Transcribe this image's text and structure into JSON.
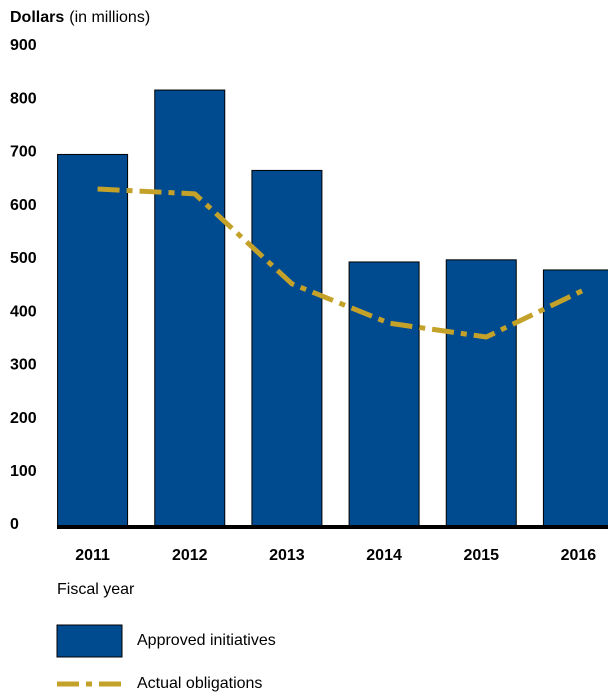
{
  "chart_data": {
    "type": "bar",
    "ylabel": "Dollars",
    "yunit": "(in millions)",
    "xlabel": "Fiscal year",
    "categories": [
      "2011",
      "2012",
      "2013",
      "2014",
      "2015",
      "2016"
    ],
    "series": [
      {
        "name": "Approved initiatives",
        "type": "bar",
        "color": "#004a8f",
        "values": [
          700,
          821,
          670,
          498,
          502,
          483
        ]
      },
      {
        "name": "Actual obligations",
        "type": "line",
        "color": "#c4a22a",
        "values": [
          635,
          626,
          457,
          383,
          357,
          445
        ]
      }
    ],
    "ylim": [
      0,
      900
    ],
    "yticks": [
      0,
      100,
      200,
      300,
      400,
      500,
      600,
      700,
      800,
      900
    ],
    "grid": false
  }
}
